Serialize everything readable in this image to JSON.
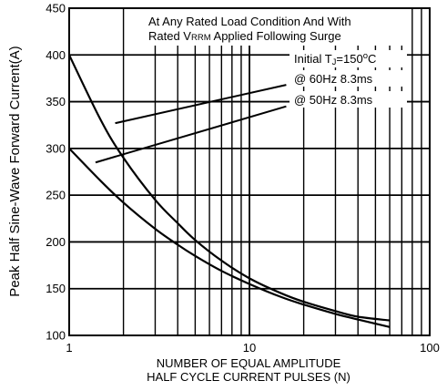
{
  "chart_data": {
    "type": "line",
    "title": "",
    "ylabel": "Peak Half Sine-Wave Forward Current(A)",
    "xlabel_line1": "NUMBER OF EQUAL AMPLITUDE",
    "xlabel_line2": "HALF CYCLE CURRENT PULSES (N)",
    "xscale": "log",
    "xlim": [
      1,
      100
    ],
    "ylim": [
      100,
      450
    ],
    "x_ticks": [
      1,
      10,
      100
    ],
    "x_tick_labels": [
      "1",
      "10",
      "100"
    ],
    "y_ticks": [
      100,
      150,
      200,
      250,
      300,
      350,
      400,
      450
    ],
    "y_tick_labels": [
      "100",
      "150",
      "200",
      "250",
      "300",
      "350",
      "400",
      "450"
    ],
    "grid": true,
    "series": [
      {
        "name": "@ 60Hz 8.3ms",
        "x": [
          1,
          1.5,
          2,
          3,
          4,
          5,
          7,
          10,
          15,
          20,
          30,
          40,
          60
        ],
        "y": [
          400,
          330,
          290,
          245,
          220,
          202,
          180,
          161,
          145,
          136,
          126,
          120,
          116
        ]
      },
      {
        "name": "@ 50Hz 8.3ms",
        "x": [
          1,
          1.5,
          2,
          3,
          4,
          5,
          7,
          10,
          15,
          20,
          30,
          40,
          60
        ],
        "y": [
          300,
          265,
          242,
          214,
          197,
          185,
          169,
          155,
          141,
          133,
          123,
          117,
          109
        ]
      }
    ],
    "annotations": {
      "line1": "At Any Rated Load Condition And With",
      "line2_pre": "Rated V",
      "line2_sub": "RRM",
      "line2_post": " Applied Following Surge",
      "tj_pre": "Initial T",
      "tj_sub": "J",
      "tj_post": "=150",
      "tj_sup": "o",
      "tj_unit": "C",
      "label_60": "@ 60Hz 8.3ms",
      "label_50": "@ 50Hz 8.3ms"
    },
    "leaders": [
      {
        "label": "@ 60Hz 8.3ms",
        "from": [
          1.8,
          327
        ],
        "to": [
          16,
          368
        ]
      },
      {
        "label": "@ 50Hz 8.3ms",
        "from": [
          1.4,
          285
        ],
        "to": [
          16,
          345
        ]
      }
    ]
  }
}
